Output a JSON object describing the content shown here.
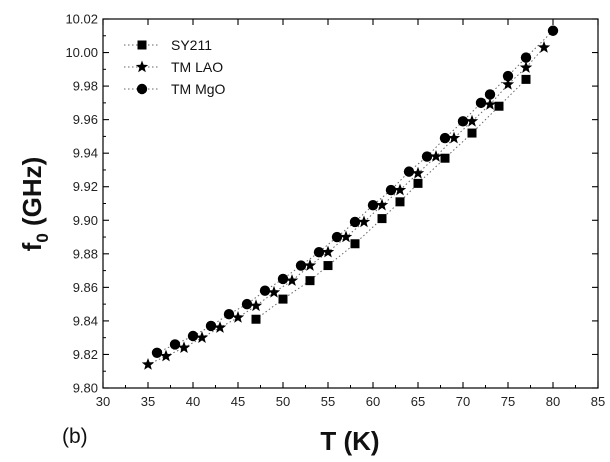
{
  "panel_label": "(b)",
  "chart_data": {
    "type": "scatter",
    "xlabel": "T (K)",
    "ylabel": {
      "main": "f",
      "sub": "0",
      "unit": " (GHz)"
    },
    "xlim": [
      30,
      85
    ],
    "ylim": [
      9.8,
      10.02
    ],
    "xticks": [
      30,
      35,
      40,
      45,
      50,
      55,
      60,
      65,
      70,
      75,
      80,
      85
    ],
    "yticks": [
      9.8,
      9.82,
      9.84,
      9.86,
      9.88,
      9.9,
      9.92,
      9.94,
      9.96,
      9.98,
      10.0,
      10.02
    ],
    "xtick_labels": [
      "30",
      "35",
      "40",
      "45",
      "50",
      "55",
      "60",
      "65",
      "70",
      "75",
      "80",
      "85"
    ],
    "ytick_labels": [
      "9.80",
      "9.82",
      "9.84",
      "9.86",
      "9.88",
      "9.90",
      "9.92",
      "9.94",
      "9.96",
      "9.98",
      "10.00",
      "10.02"
    ],
    "grid": false,
    "legend_position": "top-left",
    "series": [
      {
        "name": "SY211",
        "marker": "square",
        "color": "#000000",
        "x": [
          47,
          50,
          53,
          55,
          58,
          61,
          63,
          65,
          68,
          71,
          74,
          77
        ],
        "y": [
          9.841,
          9.853,
          9.864,
          9.873,
          9.886,
          9.901,
          9.911,
          9.922,
          9.937,
          9.952,
          9.968,
          9.984
        ]
      },
      {
        "name": "TM LAO",
        "marker": "star",
        "color": "#000000",
        "x": [
          35,
          37,
          39,
          41,
          43,
          45,
          47,
          49,
          51,
          53,
          55,
          57,
          59,
          61,
          63,
          65,
          67,
          69,
          71,
          73,
          75,
          77,
          79
        ],
        "y": [
          9.814,
          9.819,
          9.824,
          9.83,
          9.836,
          9.842,
          9.849,
          9.857,
          9.864,
          9.873,
          9.881,
          9.89,
          9.899,
          9.909,
          9.918,
          9.928,
          9.938,
          9.949,
          9.959,
          9.969,
          9.981,
          9.991,
          10.003
        ]
      },
      {
        "name": "TM MgO",
        "marker": "circle",
        "color": "#000000",
        "x": [
          36,
          38,
          40,
          42,
          44,
          46,
          48,
          50,
          52,
          54,
          56,
          58,
          60,
          62,
          64,
          66,
          68,
          70,
          72,
          73,
          75,
          77,
          80
        ],
        "y": [
          9.821,
          9.826,
          9.831,
          9.837,
          9.844,
          9.85,
          9.858,
          9.865,
          9.873,
          9.881,
          9.89,
          9.899,
          9.909,
          9.918,
          9.929,
          9.938,
          9.949,
          9.959,
          9.97,
          9.975,
          9.986,
          9.997,
          10.013
        ]
      }
    ]
  }
}
